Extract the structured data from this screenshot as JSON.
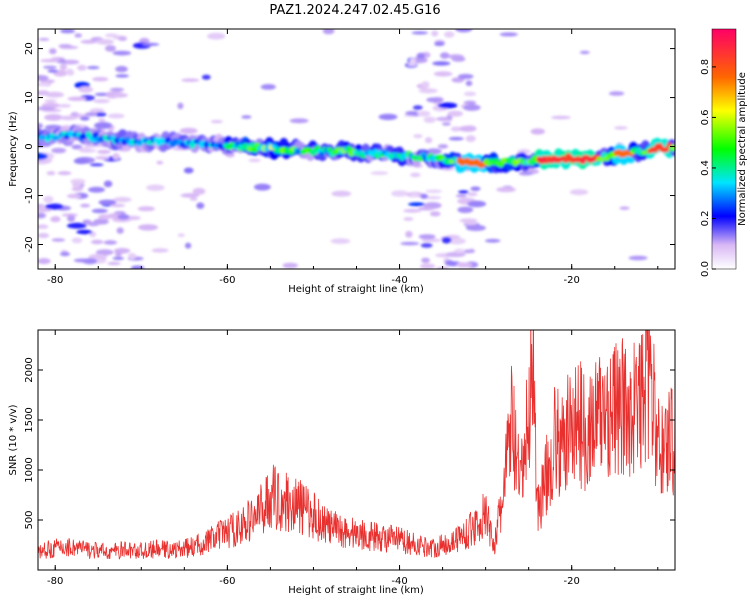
{
  "title": "PAZ1.2024.247.02.45.G16",
  "chart_data": [
    {
      "type": "heatmap",
      "title": "PAZ1.2024.247.02.45.G16",
      "xlabel": "Height of straight line (km)",
      "ylabel": "Frequency (Hz)",
      "xlim": [
        -82,
        -8
      ],
      "ylim": [
        -25,
        24
      ],
      "xticks": [
        "-80",
        "-60",
        "-40",
        "-20"
      ],
      "yticks": [
        "20",
        "10",
        "0",
        "-10",
        "-20"
      ],
      "colorbar": {
        "label": "Normalized spectral amplitude",
        "range": [
          0,
          0.95
        ],
        "ticks": [
          "0.0",
          "0.2",
          "0.4",
          "0.6",
          "0.8"
        ]
      },
      "ridge": [
        {
          "x": -81,
          "y": 2
        },
        {
          "x": -78,
          "y": 2.5
        },
        {
          "x": -74,
          "y": 1.5
        },
        {
          "x": -70,
          "y": 1
        },
        {
          "x": -66,
          "y": 1
        },
        {
          "x": -62,
          "y": 0.5
        },
        {
          "x": -58,
          "y": 0
        },
        {
          "x": -54,
          "y": -0.5
        },
        {
          "x": -50,
          "y": -1
        },
        {
          "x": -46,
          "y": -1
        },
        {
          "x": -42,
          "y": -1.5
        },
        {
          "x": -38,
          "y": -2
        },
        {
          "x": -34,
          "y": -3
        },
        {
          "x": -30,
          "y": -3.5
        },
        {
          "x": -26,
          "y": -3
        },
        {
          "x": -22,
          "y": -2.5
        },
        {
          "x": -18,
          "y": -2.5
        },
        {
          "x": -14,
          "y": -1.5
        },
        {
          "x": -10,
          "y": -0.5
        },
        {
          "x": -8,
          "y": 0
        }
      ]
    },
    {
      "type": "line",
      "xlabel": "Height of straight line (km)",
      "ylabel": "SNR (10 * v/v)",
      "xlim": [
        -82,
        -8
      ],
      "ylim": [
        0,
        2400
      ],
      "xticks": [
        "-80",
        "-60",
        "-40",
        "-20"
      ],
      "yticks": [
        "500",
        "1000",
        "1500",
        "2000"
      ],
      "line_color": "#e8312f",
      "series": [
        {
          "x": [
            -82,
            -80,
            -78,
            -76,
            -74,
            -72,
            -70,
            -68,
            -66,
            -64,
            -62,
            -60,
            -58,
            -56,
            -55,
            -54,
            -52,
            -50,
            -48,
            -46,
            -44,
            -42,
            -40,
            -38,
            -36,
            -34,
            -32,
            -30,
            -29,
            -28,
            -27,
            -26,
            -25,
            -24.5,
            -24,
            -23,
            -22,
            -21,
            -20,
            -18,
            -16,
            -14,
            -12,
            -11,
            -10,
            -8
          ],
          "y": [
            180,
            220,
            230,
            200,
            180,
            200,
            190,
            210,
            200,
            230,
            300,
            380,
            450,
            600,
            750,
            700,
            650,
            550,
            420,
            380,
            350,
            320,
            300,
            250,
            220,
            280,
            380,
            550,
            250,
            700,
            1500,
            800,
            1500,
            2400,
            600,
            900,
            1300,
            1200,
            1500,
            1400,
            1600,
            1600,
            1650,
            2050,
            1200,
            1350
          ]
        }
      ]
    }
  ]
}
